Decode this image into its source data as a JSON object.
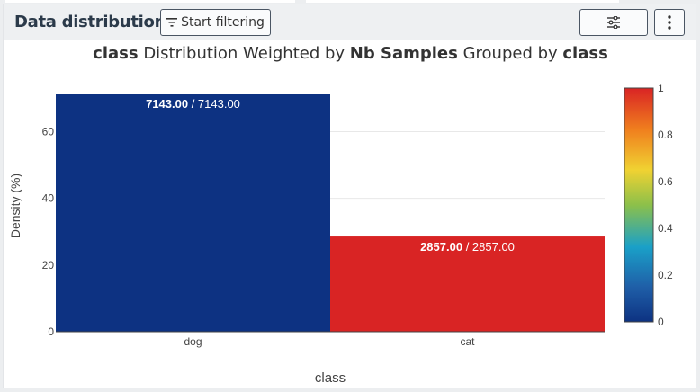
{
  "header": {
    "title": "Data distribution",
    "filter_button_label": "Start filtering",
    "settings_icon": "sliders-icon",
    "more_icon": "vertical-dots-icon"
  },
  "chart_title": {
    "part1": "class",
    "part2": " Distribution Weighted by ",
    "part3": "Nb Samples",
    "part4": " Grouped by ",
    "part5": "class"
  },
  "chart_data": {
    "type": "bar",
    "categories": [
      "dog",
      "cat"
    ],
    "values": [
      71.43,
      28.57
    ],
    "bar_labels": [
      {
        "bold": "7143.00",
        "rest": " / 7143.00"
      },
      {
        "bold": "2857.00",
        "rest": " / 2857.00"
      }
    ],
    "colors": [
      "#0d3282",
      "#d92424"
    ],
    "xlabel": "class",
    "ylabel": "Density (%)",
    "ylim": [
      0,
      72
    ],
    "yticks": [
      0,
      20,
      40,
      60
    ],
    "grid": true,
    "colorbar": {
      "ticks": [
        "0",
        "0.2",
        "0.4",
        "0.6",
        "0.8",
        "1"
      ],
      "tick_values": [
        0,
        0.2,
        0.4,
        0.6,
        0.8,
        1
      ]
    }
  }
}
